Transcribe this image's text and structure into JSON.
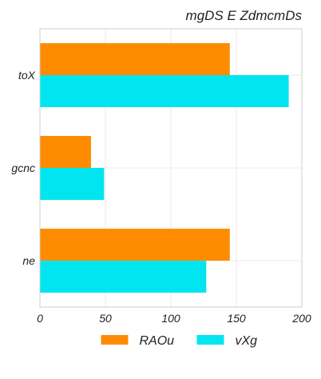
{
  "chart_data": {
    "type": "bar",
    "orientation": "horizontal",
    "title": "mgDS E ZdmcmDs",
    "xlabel": "",
    "ylabel": "",
    "categories": [
      "toX",
      "gcnc",
      "ne"
    ],
    "series": [
      {
        "name": "RAOu",
        "color": "#ff8c00",
        "values": [
          145,
          39,
          145
        ]
      },
      {
        "name": "vXg",
        "color": "#00e5f0",
        "values": [
          190,
          49,
          127
        ]
      }
    ],
    "xlim": [
      0,
      200
    ],
    "xticks": [
      0,
      50,
      100,
      150,
      200
    ],
    "grid": true,
    "legend": "bottom-center"
  }
}
